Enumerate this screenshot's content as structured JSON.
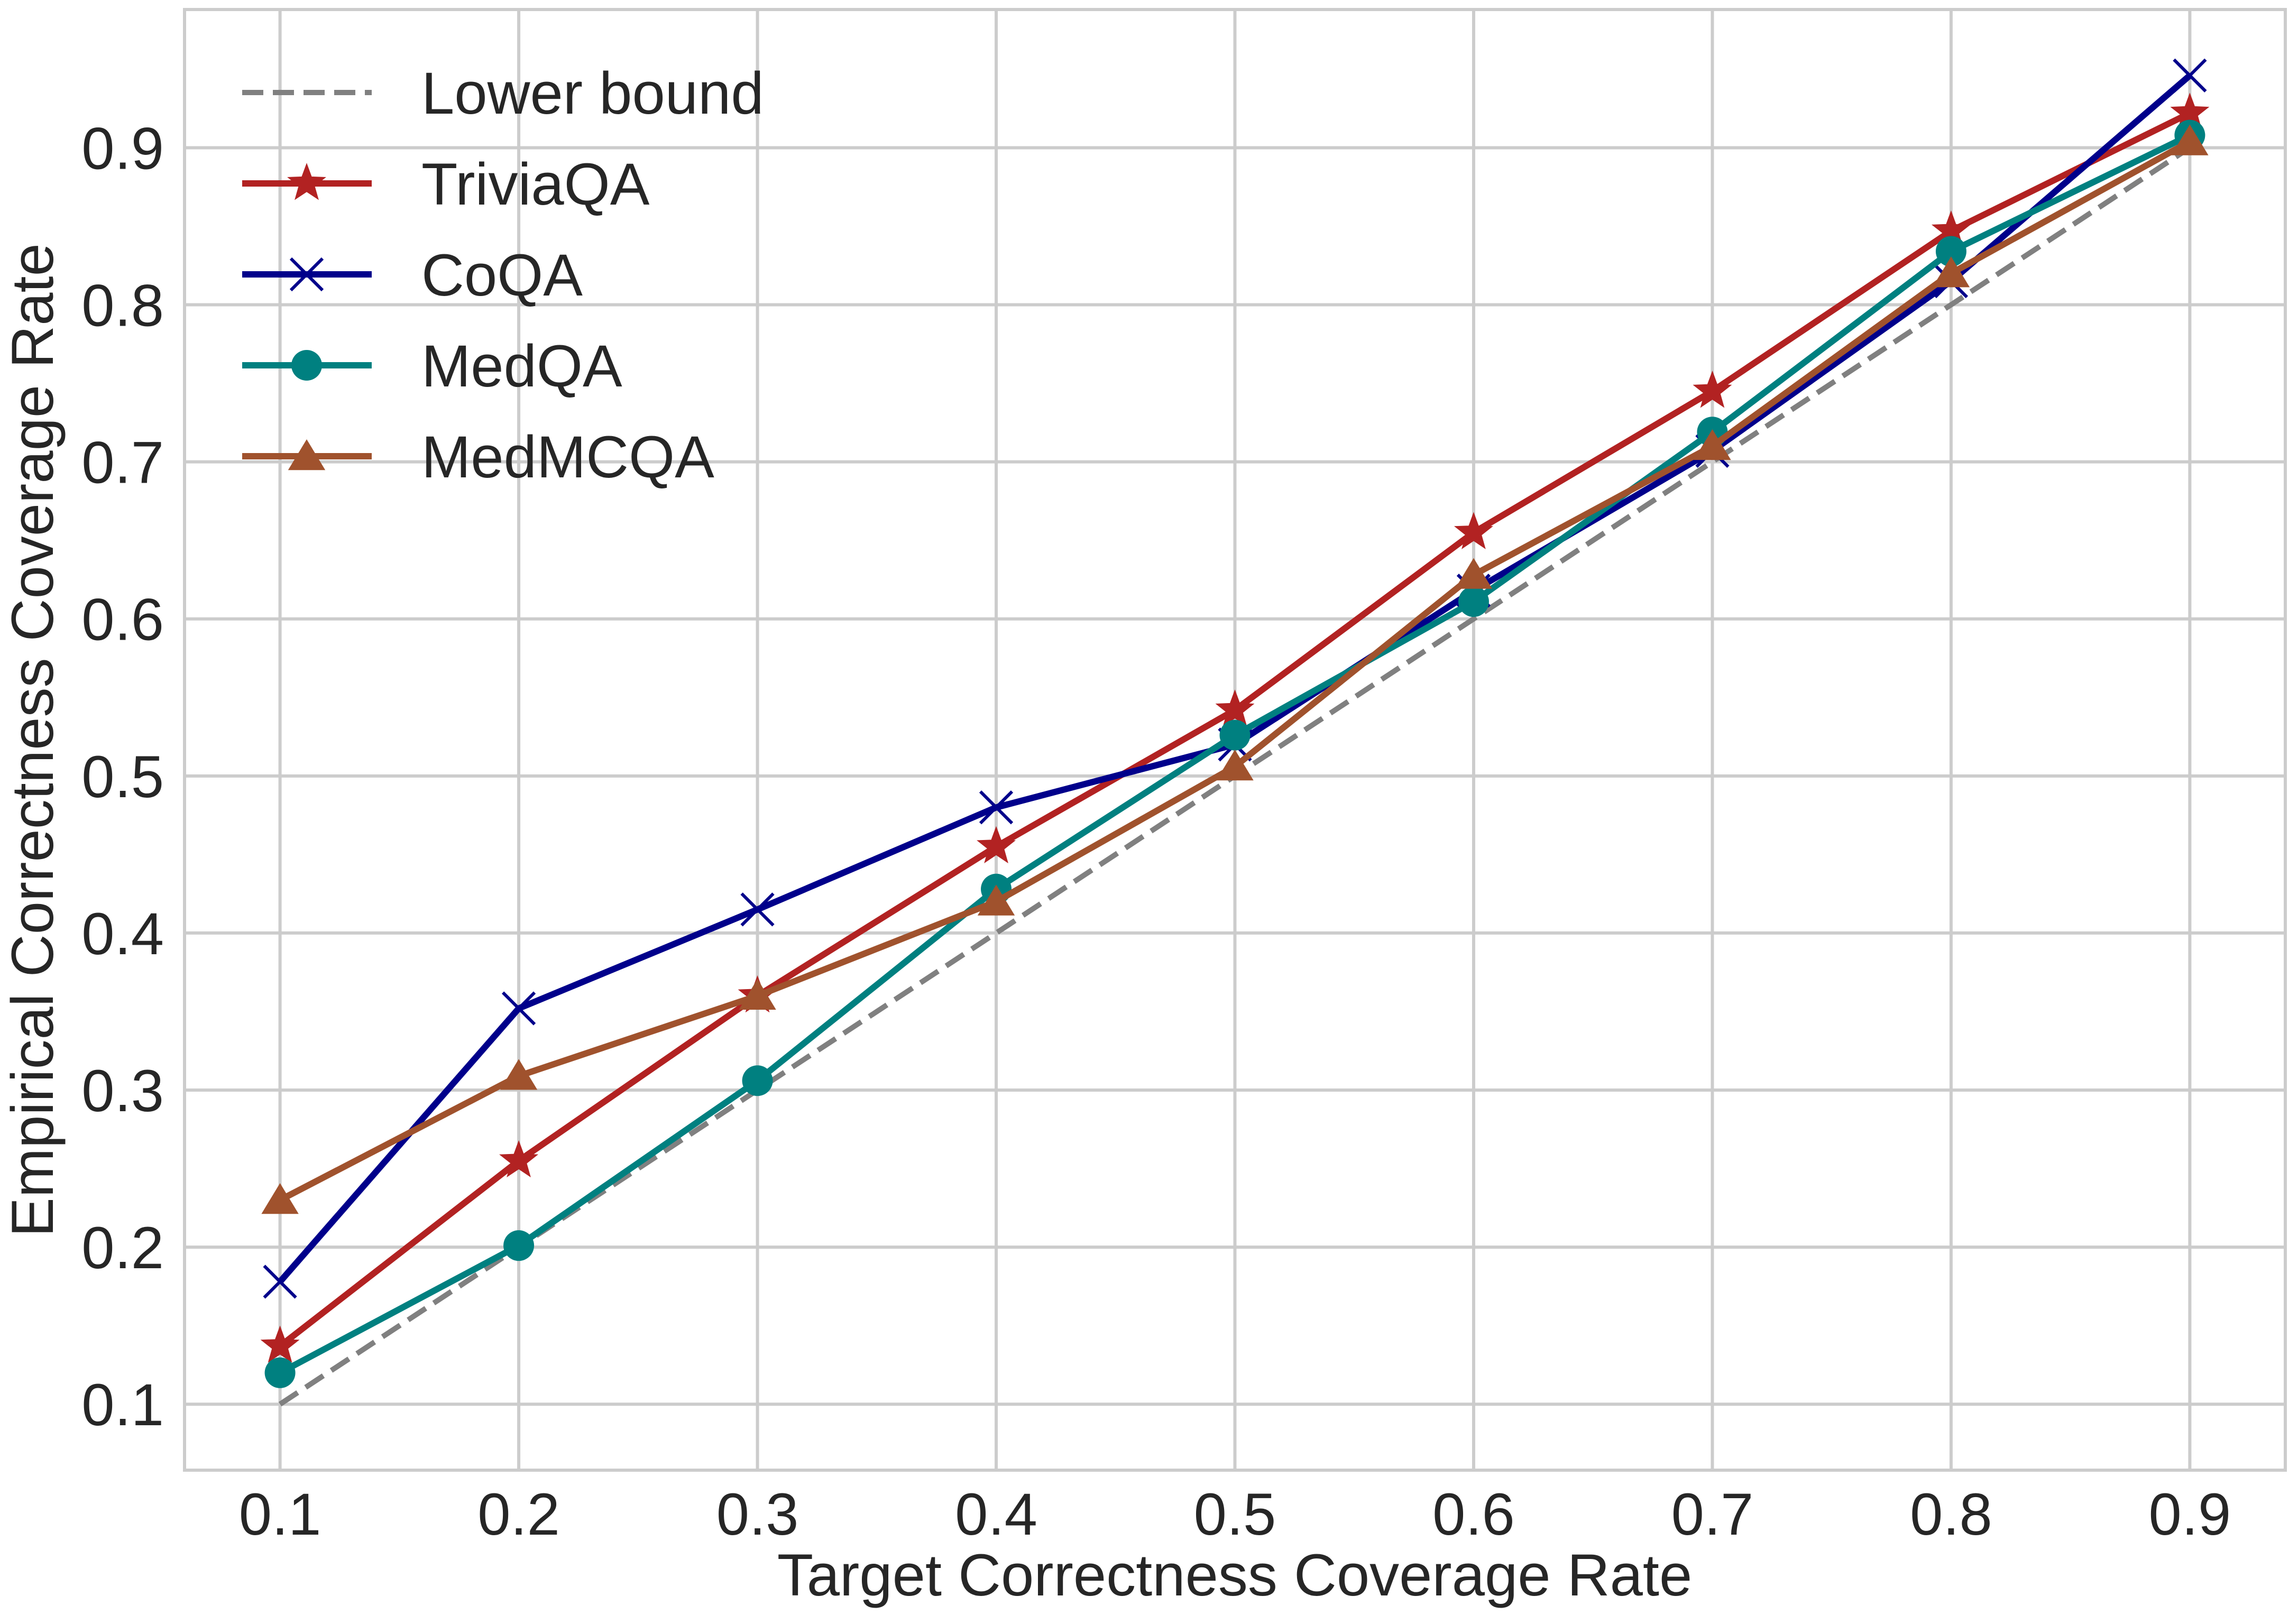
{
  "chart_data": {
    "type": "line",
    "title": "",
    "xlabel": "Target Correctness Coverage Rate",
    "ylabel": "Empirical Correctness Coverage Rate",
    "x": [
      0.1,
      0.2,
      0.3,
      0.4,
      0.5,
      0.6,
      0.7,
      0.8,
      0.9
    ],
    "xlim": [
      0.06,
      0.94
    ],
    "ylim": [
      0.058,
      0.988
    ],
    "xticks": [
      "0.1",
      "0.2",
      "0.3",
      "0.4",
      "0.5",
      "0.6",
      "0.7",
      "0.8",
      "0.9"
    ],
    "yticks": [
      "0.1",
      "0.2",
      "0.3",
      "0.4",
      "0.5",
      "0.6",
      "0.7",
      "0.8",
      "0.9"
    ],
    "grid": true,
    "legend_position": "top-left",
    "series": [
      {
        "name": "Lower bound",
        "color": "#808080",
        "style": "dashed",
        "marker": "none",
        "values": [
          0.1,
          0.2,
          0.3,
          0.4,
          0.5,
          0.6,
          0.7,
          0.8,
          0.9
        ]
      },
      {
        "name": "TriviaQA",
        "color": "#b22222",
        "style": "solid",
        "marker": "star",
        "values": [
          0.137,
          0.255,
          0.36,
          0.455,
          0.542,
          0.655,
          0.745,
          0.847,
          0.922
        ]
      },
      {
        "name": "CoQA",
        "color": "#00008b",
        "style": "solid",
        "marker": "x",
        "values": [
          0.178,
          0.352,
          0.415,
          0.48,
          0.52,
          0.618,
          0.707,
          0.815,
          0.946
        ]
      },
      {
        "name": "MedQA",
        "color": "#008080",
        "style": "solid",
        "marker": "circle",
        "values": [
          0.12,
          0.201,
          0.306,
          0.428,
          0.526,
          0.611,
          0.719,
          0.834,
          0.908
        ]
      },
      {
        "name": "MedMCQA",
        "color": "#a0522d",
        "style": "solid",
        "marker": "triangle",
        "values": [
          0.23,
          0.309,
          0.36,
          0.42,
          0.506,
          0.628,
          0.71,
          0.82,
          0.904
        ]
      }
    ]
  }
}
